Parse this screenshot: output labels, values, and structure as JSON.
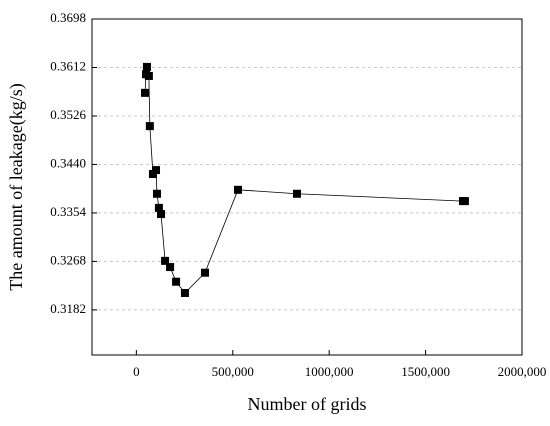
{
  "chart_data": {
    "type": "line",
    "xlabel": "Number of grids",
    "ylabel": "The amount of leakage(kg/s)",
    "color": "#000000",
    "grid": true,
    "x": [
      45000,
      50000,
      55000,
      65000,
      70000,
      86000,
      102000,
      107000,
      117000,
      128000,
      149000,
      175000,
      206000,
      252000,
      356000,
      527000,
      833000,
      1694000,
      1704000
    ],
    "series": [
      {
        "name": "leakage",
        "color": "#000000",
        "values": [
          0.3567,
          0.36,
          0.3613,
          0.3597,
          0.3508,
          0.3423,
          0.343,
          0.3388,
          0.3363,
          0.3352,
          0.3269,
          0.3258,
          0.3232,
          0.3212,
          0.3248,
          0.3395,
          0.3388,
          0.3375,
          0.3375
        ]
      }
    ],
    "xlim": [
      -230000,
      2000000
    ],
    "xticks": [
      0,
      {
        "value": 500000,
        "label": "500,000"
      },
      {
        "value": 1000000,
        "label": "1000,000"
      },
      {
        "value": 1500000,
        "label": "1500,000"
      },
      {
        "value": 2000000,
        "label": "2000,000"
      }
    ],
    "ylim": [
      0.3102,
      0.3698
    ],
    "yticks": [
      0.3182,
      0.3268,
      0.3354,
      {
        "value": 0.344,
        "label": "0.3440"
      },
      0.3526,
      0.3612,
      0.3698
    ]
  }
}
